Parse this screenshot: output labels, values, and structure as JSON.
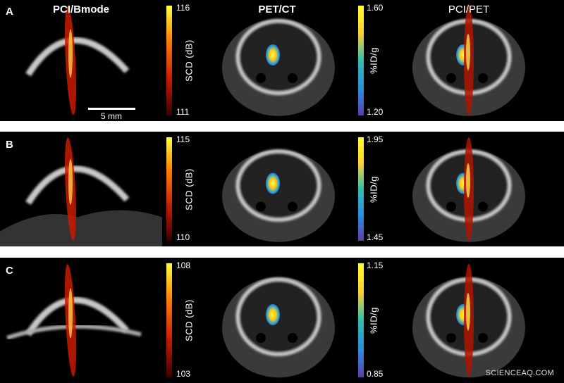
{
  "figure": {
    "column_titles": [
      "PCI/Bmode",
      "PET/CT",
      "PCI/PET"
    ],
    "scale_bar_label": "5 mm",
    "watermark": "SCIENCEAQ.COM",
    "rows": [
      {
        "letter": "A",
        "pci_colorbar": {
          "label": "SCD (dB)",
          "max": "116",
          "min": "111"
        },
        "pet_colorbar": {
          "label": "%ID/g",
          "max": "1.60",
          "min": "1.20"
        }
      },
      {
        "letter": "B",
        "pci_colorbar": {
          "label": "SCD (dB)",
          "max": "115",
          "min": "110"
        },
        "pet_colorbar": {
          "label": "%ID/g",
          "max": "1.95",
          "min": "1.45"
        }
      },
      {
        "letter": "C",
        "pci_colorbar": {
          "label": "SCD (dB)",
          "max": "108",
          "min": "103"
        },
        "pet_colorbar": {
          "label": "%ID/g",
          "max": "1.15",
          "min": "0.85"
        }
      }
    ],
    "colors": {
      "pci_colormap": [
        "#3a0000",
        "#c81a00",
        "#ff7a00",
        "#ffff40"
      ],
      "pet_colormap": [
        "#5a3fb0",
        "#2a8ee0",
        "#30c0b0",
        "#ffd030",
        "#ffff30"
      ],
      "separator": "#ffffff"
    }
  }
}
